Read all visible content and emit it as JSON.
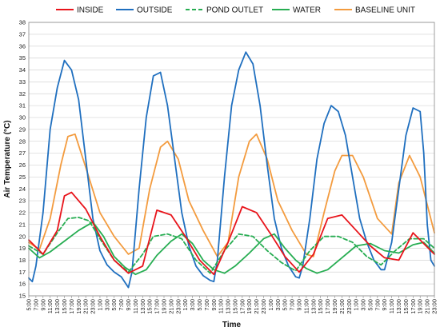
{
  "chart_data": {
    "type": "line",
    "xlabel": "Time",
    "ylabel": "Air Temperature (°C)",
    "ylim": [
      15,
      38
    ],
    "ytick_step": 1,
    "grid": "horizontal",
    "legend_position": "top",
    "x_tick_labels": [
      "5:00",
      "7:00",
      "9:00",
      "11:00",
      "13:00",
      "15:00",
      "17:00",
      "19:00",
      "21:00",
      "23:00",
      "1:00",
      "3:00",
      "5:00",
      "7:00",
      "9:00",
      "11:00",
      "13:00",
      "15:00",
      "17:00",
      "19:00",
      "21:00",
      "23:00",
      "1:00",
      "3:00",
      "5:00",
      "7:00",
      "9:00",
      "11:00",
      "13:00",
      "15:00",
      "17:00",
      "19:00",
      "21:00",
      "23:00",
      "1:00",
      "3:00",
      "5:00",
      "7:00",
      "9:00",
      "11:00",
      "13:00",
      "15:00",
      "17:00",
      "19:00",
      "21:00",
      "23:00",
      "1:00",
      "3:00",
      "5:00",
      "7:00",
      "9:00",
      "11:00",
      "13:00",
      "15:00",
      "17:00",
      "19:00",
      "21:00",
      "23:00"
    ],
    "x_range_hours": [
      0,
      114
    ],
    "series": [
      {
        "name": "INSIDE",
        "color": "#e8141b",
        "dash": "solid",
        "points": [
          [
            0,
            19.7
          ],
          [
            4,
            18.5
          ],
          [
            8,
            20.5
          ],
          [
            10,
            23.4
          ],
          [
            12,
            23.7
          ],
          [
            16,
            22.3
          ],
          [
            20,
            20.0
          ],
          [
            24,
            18.0
          ],
          [
            28,
            16.9
          ],
          [
            32,
            17.5
          ],
          [
            36,
            22.2
          ],
          [
            40,
            21.8
          ],
          [
            44,
            20.0
          ],
          [
            48,
            18.0
          ],
          [
            52,
            16.8
          ],
          [
            56,
            19.5
          ],
          [
            60,
            22.5
          ],
          [
            64,
            22.0
          ],
          [
            68,
            20.2
          ],
          [
            72,
            18.3
          ],
          [
            76,
            17.0
          ],
          [
            80,
            18.5
          ],
          [
            84,
            21.5
          ],
          [
            88,
            21.8
          ],
          [
            92,
            20.5
          ],
          [
            96,
            19.2
          ],
          [
            100,
            18.2
          ],
          [
            104,
            18.0
          ],
          [
            108,
            20.3
          ],
          [
            114,
            18.5
          ]
        ]
      },
      {
        "name": "OUTSIDE",
        "color": "#1f6fbf",
        "dash": "solid",
        "points": [
          [
            0,
            16.5
          ],
          [
            1,
            16.2
          ],
          [
            2,
            17.5
          ],
          [
            4,
            22.0
          ],
          [
            6,
            29.0
          ],
          [
            8,
            32.5
          ],
          [
            10,
            34.8
          ],
          [
            12,
            34.0
          ],
          [
            14,
            31.5
          ],
          [
            16,
            26.5
          ],
          [
            18,
            21.5
          ],
          [
            20,
            18.8
          ],
          [
            22,
            17.6
          ],
          [
            24,
            17.0
          ],
          [
            26,
            16.6
          ],
          [
            28,
            15.7
          ],
          [
            29,
            17.0
          ],
          [
            31,
            24.0
          ],
          [
            33,
            30.0
          ],
          [
            35,
            33.5
          ],
          [
            37,
            33.8
          ],
          [
            39,
            31.0
          ],
          [
            41,
            26.5
          ],
          [
            43,
            22.0
          ],
          [
            45,
            19.2
          ],
          [
            47,
            17.5
          ],
          [
            49,
            16.7
          ],
          [
            51,
            16.3
          ],
          [
            52,
            16.2
          ],
          [
            53,
            18.0
          ],
          [
            55,
            25.0
          ],
          [
            57,
            31.0
          ],
          [
            59,
            34.0
          ],
          [
            61,
            35.5
          ],
          [
            63,
            34.5
          ],
          [
            65,
            31.0
          ],
          [
            67,
            26.0
          ],
          [
            69,
            21.5
          ],
          [
            71,
            19.0
          ],
          [
            73,
            17.5
          ],
          [
            75,
            16.6
          ],
          [
            76,
            16.5
          ],
          [
            77,
            17.5
          ],
          [
            79,
            21.5
          ],
          [
            81,
            26.5
          ],
          [
            83,
            29.5
          ],
          [
            85,
            31.0
          ],
          [
            87,
            30.5
          ],
          [
            89,
            28.5
          ],
          [
            91,
            25.0
          ],
          [
            93,
            21.5
          ],
          [
            95,
            19.5
          ],
          [
            97,
            18.0
          ],
          [
            99,
            17.2
          ],
          [
            100,
            17.2
          ],
          [
            102,
            19.5
          ],
          [
            104,
            24.0
          ],
          [
            106,
            28.5
          ],
          [
            108,
            30.8
          ],
          [
            110,
            30.5
          ],
          [
            111,
            27.0
          ],
          [
            112,
            21.0
          ],
          [
            113,
            18.0
          ],
          [
            114,
            17.5
          ]
        ]
      },
      {
        "name": "POND OUTLET",
        "color": "#27ad52",
        "dash": "dashed",
        "points": [
          [
            0,
            19.2
          ],
          [
            4,
            18.5
          ],
          [
            8,
            20.3
          ],
          [
            11,
            21.5
          ],
          [
            14,
            21.6
          ],
          [
            17,
            21.3
          ],
          [
            20,
            19.8
          ],
          [
            24,
            18.0
          ],
          [
            28,
            17.0
          ],
          [
            32,
            18.5
          ],
          [
            35,
            20.0
          ],
          [
            39,
            20.2
          ],
          [
            43,
            19.8
          ],
          [
            47,
            18.0
          ],
          [
            51,
            16.9
          ],
          [
            55,
            18.8
          ],
          [
            59,
            20.2
          ],
          [
            63,
            20.0
          ],
          [
            67,
            18.8
          ],
          [
            71,
            17.8
          ],
          [
            75,
            17.1
          ],
          [
            79,
            18.8
          ],
          [
            83,
            20.0
          ],
          [
            87,
            20.0
          ],
          [
            91,
            19.5
          ],
          [
            95,
            18.3
          ],
          [
            99,
            17.6
          ],
          [
            103,
            18.8
          ],
          [
            107,
            19.8
          ],
          [
            111,
            19.8
          ],
          [
            114,
            19.0
          ]
        ]
      },
      {
        "name": "WATER",
        "color": "#27ad52",
        "dash": "solid",
        "points": [
          [
            0,
            19.0
          ],
          [
            3,
            18.2
          ],
          [
            6,
            18.7
          ],
          [
            10,
            19.6
          ],
          [
            14,
            20.5
          ],
          [
            18,
            21.2
          ],
          [
            21,
            20.0
          ],
          [
            24,
            18.3
          ],
          [
            27,
            17.4
          ],
          [
            30,
            16.8
          ],
          [
            33,
            17.2
          ],
          [
            36,
            18.4
          ],
          [
            40,
            19.6
          ],
          [
            43,
            20.2
          ],
          [
            46,
            19.4
          ],
          [
            49,
            18.0
          ],
          [
            52,
            17.2
          ],
          [
            55,
            16.9
          ],
          [
            58,
            17.5
          ],
          [
            62,
            18.6
          ],
          [
            66,
            19.8
          ],
          [
            69,
            20.2
          ],
          [
            72,
            19.0
          ],
          [
            75,
            18.0
          ],
          [
            78,
            17.3
          ],
          [
            81,
            16.9
          ],
          [
            84,
            17.2
          ],
          [
            88,
            18.2
          ],
          [
            92,
            19.2
          ],
          [
            96,
            19.4
          ],
          [
            100,
            18.8
          ],
          [
            104,
            18.6
          ],
          [
            108,
            19.3
          ],
          [
            111,
            19.5
          ],
          [
            114,
            18.6
          ]
        ]
      },
      {
        "name": "BASELINE UNIT",
        "color": "#f39b3e",
        "dash": "solid",
        "points": [
          [
            0,
            19.5
          ],
          [
            3,
            18.9
          ],
          [
            6,
            21.5
          ],
          [
            9,
            26.0
          ],
          [
            11,
            28.4
          ],
          [
            13,
            28.6
          ],
          [
            16,
            25.8
          ],
          [
            20,
            22.0
          ],
          [
            24,
            20.0
          ],
          [
            28,
            18.5
          ],
          [
            31,
            19.0
          ],
          [
            34,
            24.0
          ],
          [
            37,
            27.5
          ],
          [
            39,
            28.0
          ],
          [
            42,
            26.5
          ],
          [
            45,
            23.0
          ],
          [
            49,
            20.5
          ],
          [
            53,
            18.3
          ],
          [
            56,
            19.5
          ],
          [
            59,
            25.0
          ],
          [
            62,
            28.0
          ],
          [
            64,
            28.6
          ],
          [
            67,
            26.5
          ],
          [
            70,
            23.0
          ],
          [
            74,
            20.5
          ],
          [
            78,
            18.5
          ],
          [
            80,
            18.3
          ],
          [
            83,
            22.0
          ],
          [
            86,
            25.5
          ],
          [
            88,
            26.8
          ],
          [
            91,
            26.8
          ],
          [
            94,
            25.0
          ],
          [
            98,
            21.5
          ],
          [
            102,
            20.2
          ],
          [
            104,
            24.5
          ],
          [
            107,
            26.8
          ],
          [
            110,
            25.0
          ],
          [
            114,
            20.3
          ]
        ]
      }
    ]
  }
}
